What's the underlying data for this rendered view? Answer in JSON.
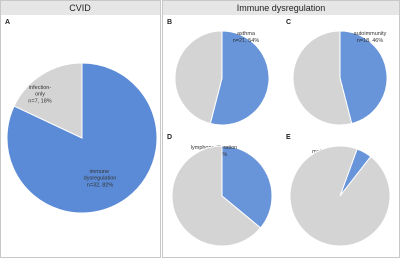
{
  "headers": [
    "CVID",
    "Immune dysregulation"
  ],
  "chart_data": [
    {
      "type": "pie",
      "panel": "A",
      "categories": [
        "immune dysregulation",
        "infection-only"
      ],
      "values": [
        82,
        18
      ],
      "value_labels": [
        "n=32, 82%",
        "n=7, 18%"
      ],
      "colors": [
        "#5b8bd6",
        "#d4d4d4"
      ],
      "hatched": false
    },
    {
      "type": "pie",
      "panel": "B",
      "categories": [
        "asthma",
        null
      ],
      "values": [
        54,
        46
      ],
      "value_labels": [
        "n=21, 54%",
        null
      ],
      "colors": [
        "#5b8bd6",
        "#d4d4d4"
      ],
      "hatched": true
    },
    {
      "type": "pie",
      "panel": "C",
      "categories": [
        "autoimmunity",
        null
      ],
      "values": [
        46,
        54
      ],
      "value_labels": [
        "n=18, 46%",
        null
      ],
      "colors": [
        "#5b8bd6",
        "#d4d4d4"
      ],
      "hatched": true
    },
    {
      "type": "pie",
      "panel": "D",
      "categories": [
        "lymphoproliferation",
        null
      ],
      "values": [
        36,
        64
      ],
      "value_labels": [
        "n=14, 36%",
        null
      ],
      "colors": [
        "#5b8bd6",
        "#d4d4d4"
      ],
      "hatched": true
    },
    {
      "type": "pie",
      "panel": "E",
      "categories": [
        "malignancy",
        null
      ],
      "values": [
        5,
        95
      ],
      "value_labels": [
        "n=2, 5%",
        null
      ],
      "colors": [
        "#5b8bd6",
        "#d4d4d4"
      ],
      "hatched": true
    }
  ]
}
